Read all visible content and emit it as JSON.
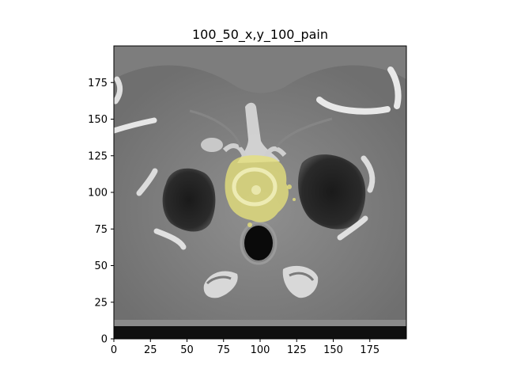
{
  "figure": {
    "title": "100_50_x,y_100_pain"
  },
  "axes": {
    "xlim": [
      0,
      200
    ],
    "ylim": [
      0,
      200
    ],
    "xticks": [
      0,
      25,
      50,
      75,
      100,
      125,
      150,
      175
    ],
    "yticks": [
      0,
      25,
      50,
      75,
      100,
      125,
      150,
      175
    ],
    "xtick_labels": [
      "0",
      "25",
      "50",
      "75",
      "100",
      "125",
      "150",
      "175"
    ],
    "ytick_labels": [
      "0",
      "25",
      "50",
      "75",
      "100",
      "125",
      "150",
      "175"
    ]
  },
  "image": {
    "content": "axial CT slice, upper thorax, grayscale",
    "overlay": {
      "label": "pain region mask",
      "color": "#e6e07a",
      "center": [
        98,
        108
      ]
    }
  }
}
